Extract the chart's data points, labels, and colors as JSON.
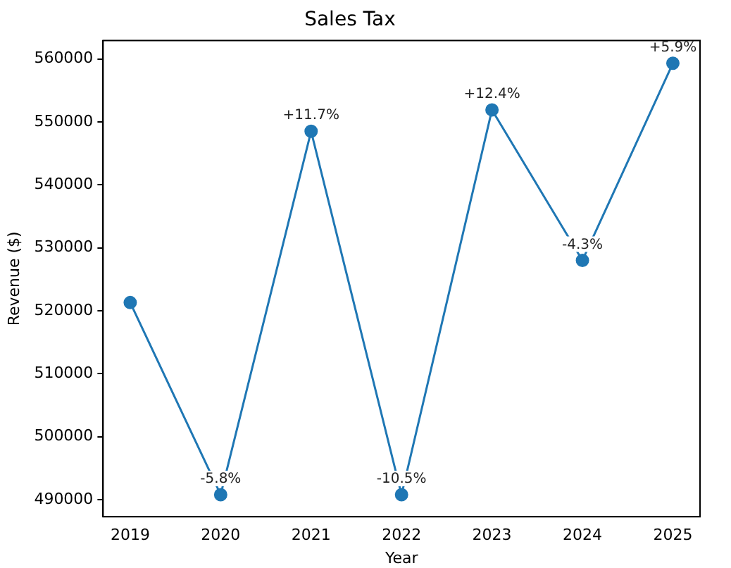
{
  "chart_data": {
    "type": "line",
    "title": "Sales Tax",
    "xlabel": "Year",
    "ylabel": "Revenue ($)",
    "x": [
      2019,
      2020,
      2021,
      2022,
      2023,
      2024,
      2025
    ],
    "series": [
      {
        "color": "#1f77b4",
        "values": [
          521300,
          490800,
          548500,
          490800,
          551900,
          528000,
          559300
        ]
      }
    ],
    "annotations": [
      {
        "text": "-5.8%",
        "x": 2020,
        "y": 490800
      },
      {
        "text": "+11.7%",
        "x": 2021,
        "y": 548500
      },
      {
        "text": "-10.5%",
        "x": 2022,
        "y": 490800
      },
      {
        "text": "+12.4%",
        "x": 2023,
        "y": 551900
      },
      {
        "text": "-4.3%",
        "x": 2024,
        "y": 528000
      },
      {
        "text": "+5.9%",
        "x": 2025,
        "y": 559300
      }
    ],
    "xlim": [
      2018.7,
      2025.3
    ],
    "xticks": [
      2019,
      2020,
      2021,
      2022,
      2023,
      2024,
      2025
    ],
    "ylim": [
      487300,
      562900
    ],
    "yticks": [
      490000,
      500000,
      510000,
      520000,
      530000,
      540000,
      550000,
      560000
    ],
    "grid": false,
    "legend": false,
    "marker": "circle",
    "line_style": "solid"
  }
}
